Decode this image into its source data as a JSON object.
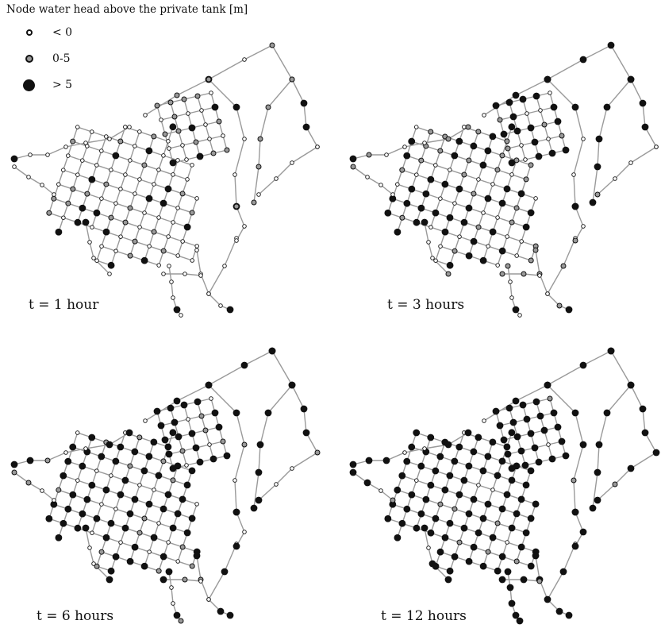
{
  "legend": {
    "title": "Node water head above the private tank [m]",
    "items": [
      {
        "key": "neg",
        "label": "< 0"
      },
      {
        "key": "mid",
        "label": "0-5"
      },
      {
        "key": "high",
        "label": "> 5"
      }
    ],
    "colors": {
      "pipe": "#9a9a9a",
      "node_stroke": "#111111",
      "neg": "#ffffff",
      "mid": "#9a9a9a",
      "high": "#111111"
    }
  },
  "panels": [
    {
      "caption": "t = 1 hour",
      "level": 0
    },
    {
      "caption": "t = 3 hours",
      "level": 1
    },
    {
      "caption": "t = 6 hours",
      "level": 2
    },
    {
      "caption": "t = 12 hours",
      "level": 3
    }
  ]
}
